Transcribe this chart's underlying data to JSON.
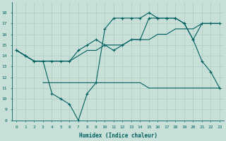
{
  "title": "",
  "xlabel": "Humidex (Indice chaleur)",
  "bg_color": "#c8e0d8",
  "line_color": "#006060",
  "grid_color": "#b0d0c8",
  "xlim": [
    -0.5,
    23.5
  ],
  "ylim": [
    8,
    19
  ],
  "xticks": [
    0,
    1,
    2,
    3,
    4,
    5,
    6,
    7,
    8,
    9,
    10,
    11,
    12,
    13,
    14,
    15,
    16,
    17,
    18,
    19,
    20,
    21,
    22,
    23
  ],
  "yticks": [
    8,
    9,
    10,
    11,
    12,
    13,
    14,
    15,
    16,
    17,
    18
  ],
  "line1_x": [
    0,
    1,
    2,
    3,
    4,
    5,
    6,
    7,
    8,
    9,
    10,
    11,
    12,
    13,
    14,
    15,
    16,
    17,
    18,
    19,
    20,
    21,
    22,
    23
  ],
  "line1_y": [
    14.5,
    14.0,
    13.5,
    13.5,
    13.5,
    13.5,
    13.5,
    14.0,
    14.5,
    14.5,
    15.0,
    15.0,
    15.0,
    15.5,
    15.5,
    15.5,
    16.0,
    16.0,
    16.5,
    16.5,
    16.5,
    17.0,
    17.0,
    17.0
  ],
  "line2_x": [
    0,
    1,
    2,
    3,
    4,
    5,
    6,
    7,
    8,
    9,
    10,
    11,
    12,
    13,
    14,
    15,
    16,
    17,
    18,
    19,
    20,
    21,
    22,
    23
  ],
  "line2_y": [
    14.5,
    14.0,
    13.5,
    13.5,
    13.5,
    13.5,
    13.5,
    14.5,
    15.0,
    15.5,
    15.0,
    14.5,
    15.0,
    15.5,
    15.5,
    17.5,
    17.5,
    17.5,
    17.5,
    17.0,
    15.5,
    17.0,
    17.0,
    17.0
  ],
  "line3_x": [
    0,
    1,
    2,
    3,
    4,
    5,
    6,
    7,
    8,
    9,
    10,
    11,
    12,
    13,
    14,
    15,
    16,
    17,
    18,
    19,
    20,
    21,
    22,
    23
  ],
  "line3_y": [
    14.5,
    14.0,
    13.5,
    13.5,
    10.5,
    10.0,
    9.5,
    8.0,
    10.5,
    11.5,
    16.5,
    17.5,
    17.5,
    17.5,
    17.5,
    18.0,
    17.5,
    17.5,
    17.5,
    17.0,
    15.5,
    13.5,
    12.5,
    11.0
  ],
  "line4_x": [
    3,
    4,
    5,
    6,
    7,
    8,
    9,
    10,
    11,
    12,
    13,
    14,
    15,
    16,
    17,
    18,
    19,
    20,
    21,
    22,
    23
  ],
  "line4_y": [
    11.5,
    11.5,
    11.5,
    11.5,
    11.5,
    11.5,
    11.5,
    11.5,
    11.5,
    11.5,
    11.5,
    11.5,
    11.0,
    11.0,
    11.0,
    11.0,
    11.0,
    11.0,
    11.0,
    11.0,
    11.0
  ]
}
